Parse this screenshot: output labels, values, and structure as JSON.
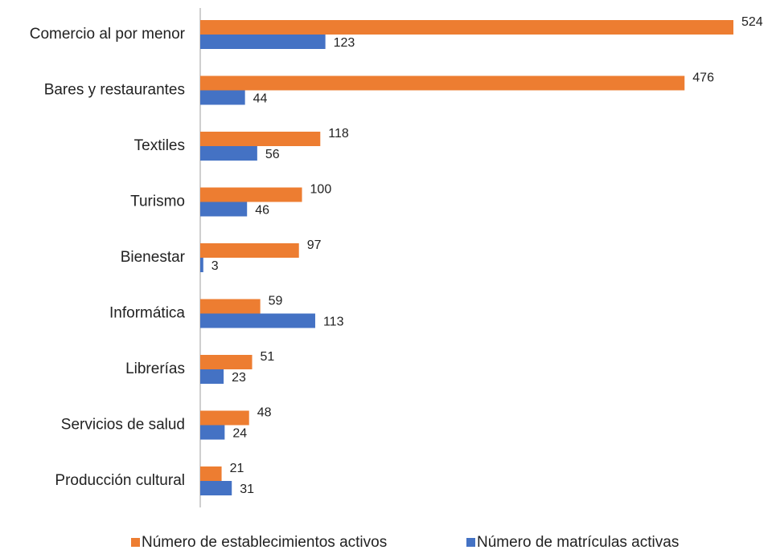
{
  "chart_data": {
    "type": "barh",
    "categories": [
      "Comercio al por menor",
      "Bares y restaurantes",
      "Textiles",
      "Turismo",
      "Bienestar",
      "Informática",
      "Librerías",
      "Servicios de salud",
      "Producción cultural"
    ],
    "series": [
      {
        "name": "Número de establecimientos activos",
        "color": "#ed7d31",
        "values": [
          524,
          476,
          118,
          100,
          97,
          59,
          51,
          48,
          21
        ]
      },
      {
        "name": "Número de matrículas activas",
        "color": "#4472c4",
        "values": [
          123,
          44,
          56,
          46,
          3,
          113,
          23,
          24,
          31
        ]
      }
    ]
  }
}
